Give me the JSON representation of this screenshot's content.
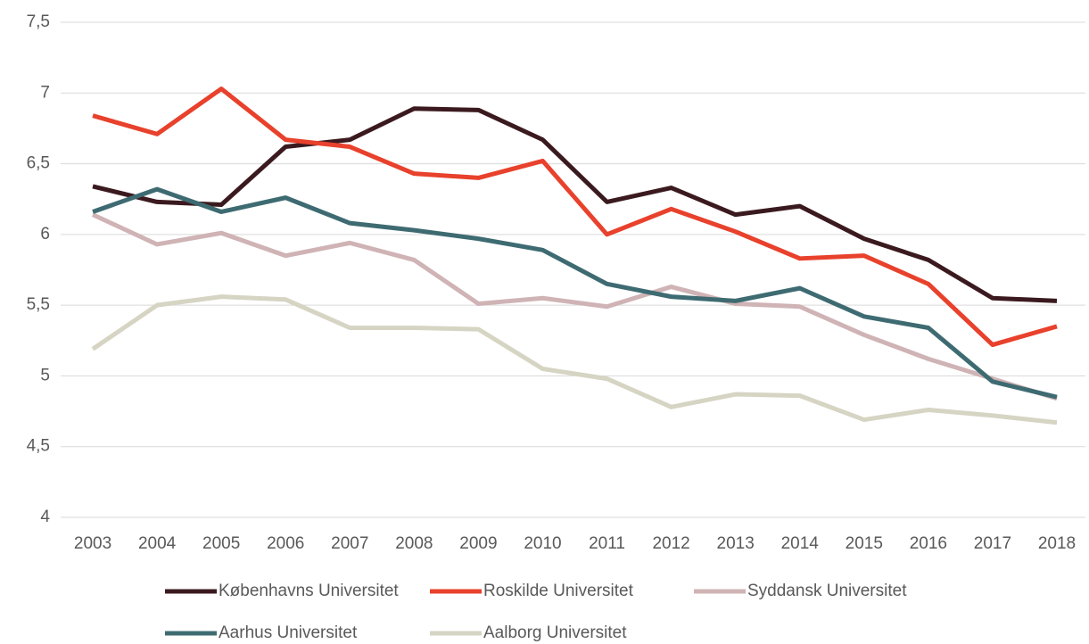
{
  "chart_data": {
    "type": "line",
    "categories": [
      "2003",
      "2004",
      "2005",
      "2006",
      "2007",
      "2008",
      "2009",
      "2010",
      "2011",
      "2012",
      "2013",
      "2014",
      "2015",
      "2016",
      "2017",
      "2018"
    ],
    "series": [
      {
        "name": "Københavns Universitet",
        "color": "#3b1a1f",
        "values": [
          6.34,
          6.23,
          6.21,
          6.62,
          6.67,
          6.89,
          6.88,
          6.67,
          6.23,
          6.33,
          6.14,
          6.2,
          5.97,
          5.82,
          5.55,
          5.53
        ]
      },
      {
        "name": "Roskilde Universitet",
        "color": "#e8412c",
        "values": [
          6.84,
          6.71,
          7.03,
          6.67,
          6.62,
          6.43,
          6.4,
          6.52,
          6.0,
          6.18,
          6.02,
          5.83,
          5.85,
          5.65,
          5.22,
          5.35
        ]
      },
      {
        "name": "Syddansk Universitet",
        "color": "#cfb3b5",
        "values": [
          6.14,
          5.93,
          6.01,
          5.85,
          5.94,
          5.82,
          5.51,
          5.55,
          5.49,
          5.63,
          5.51,
          5.49,
          5.29,
          5.12,
          4.98,
          4.84
        ]
      },
      {
        "name": "Aarhus Universitet",
        "color": "#3e6b72",
        "values": [
          6.16,
          6.32,
          6.16,
          6.26,
          6.08,
          6.03,
          5.97,
          5.89,
          5.65,
          5.56,
          5.53,
          5.62,
          5.42,
          5.34,
          4.96,
          4.85
        ]
      },
      {
        "name": "Aalborg Universitet",
        "color": "#d6d4c3",
        "values": [
          5.19,
          5.5,
          5.56,
          5.54,
          5.34,
          5.34,
          5.33,
          5.05,
          4.98,
          4.78,
          4.87,
          4.86,
          4.69,
          4.76,
          4.72,
          4.67
        ]
      }
    ],
    "ylim": [
      4,
      7.5
    ],
    "yticks": [
      4,
      {
        "value": 4.5,
        "label": "4,5"
      },
      5,
      {
        "value": 5.5,
        "label": "5,5"
      },
      6,
      {
        "value": 6.5,
        "label": "6,5"
      },
      7,
      {
        "value": 7.5,
        "label": "7,5"
      }
    ],
    "grid": true
  }
}
